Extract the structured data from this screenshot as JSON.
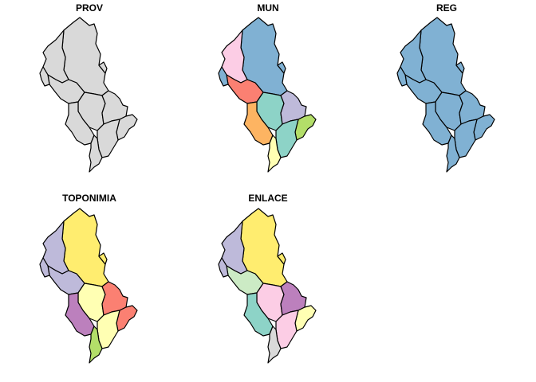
{
  "panels": [
    {
      "title": "PROV",
      "regions": [
        {
          "fill": "#d9d9d9"
        },
        {
          "fill": "#d9d9d9"
        },
        {
          "fill": "#d9d9d9"
        },
        {
          "fill": "#d9d9d9"
        },
        {
          "fill": "#d9d9d9"
        },
        {
          "fill": "#d9d9d9"
        },
        {
          "fill": "#d9d9d9"
        },
        {
          "fill": "#d9d9d9"
        },
        {
          "fill": "#d9d9d9"
        },
        {
          "fill": "#d9d9d9"
        },
        {
          "fill": "#d9d9d9"
        }
      ]
    },
    {
      "title": "MUN",
      "regions": [
        {
          "fill": "#80b1d3"
        },
        {
          "fill": "#fccde5"
        },
        {
          "fill": "#fb8072"
        },
        {
          "fill": "#8dd3c7"
        },
        {
          "fill": "#bebada"
        },
        {
          "fill": "#fdb462"
        },
        {
          "fill": "#b3de69"
        },
        {
          "fill": "#8dd3c7"
        },
        {
          "fill": "#ffffb3"
        },
        {
          "fill": "#80b1d3"
        },
        {
          "fill": "#80b1d3"
        }
      ]
    },
    {
      "title": "REG",
      "regions": [
        {
          "fill": "#80b1d3"
        },
        {
          "fill": "#80b1d3"
        },
        {
          "fill": "#80b1d3"
        },
        {
          "fill": "#80b1d3"
        },
        {
          "fill": "#80b1d3"
        },
        {
          "fill": "#80b1d3"
        },
        {
          "fill": "#80b1d3"
        },
        {
          "fill": "#80b1d3"
        },
        {
          "fill": "#80b1d3"
        },
        {
          "fill": "#80b1d3"
        },
        {
          "fill": "#80b1d3"
        }
      ]
    },
    {
      "title": "TOPONIMIA",
      "regions": [
        {
          "fill": "#ffed6f"
        },
        {
          "fill": "#bebada"
        },
        {
          "fill": "#bebada"
        },
        {
          "fill": "#ffffb3"
        },
        {
          "fill": "#fb8072"
        },
        {
          "fill": "#bc80bd"
        },
        {
          "fill": "#fb8072"
        },
        {
          "fill": "#ffffb3"
        },
        {
          "fill": "#b3de69"
        },
        {
          "fill": "#bebada"
        },
        {
          "fill": "#ffed6f"
        }
      ]
    },
    {
      "title": "ENLACE",
      "regions": [
        {
          "fill": "#ffed6f"
        },
        {
          "fill": "#bebada"
        },
        {
          "fill": "#ccebc5"
        },
        {
          "fill": "#fccde5"
        },
        {
          "fill": "#bc80bd"
        },
        {
          "fill": "#8dd3c7"
        },
        {
          "fill": "#ffffb3"
        },
        {
          "fill": "#fccde5"
        },
        {
          "fill": "#d9d9d9"
        },
        {
          "fill": "#bebada"
        },
        {
          "fill": "#ffed6f"
        }
      ]
    }
  ]
}
